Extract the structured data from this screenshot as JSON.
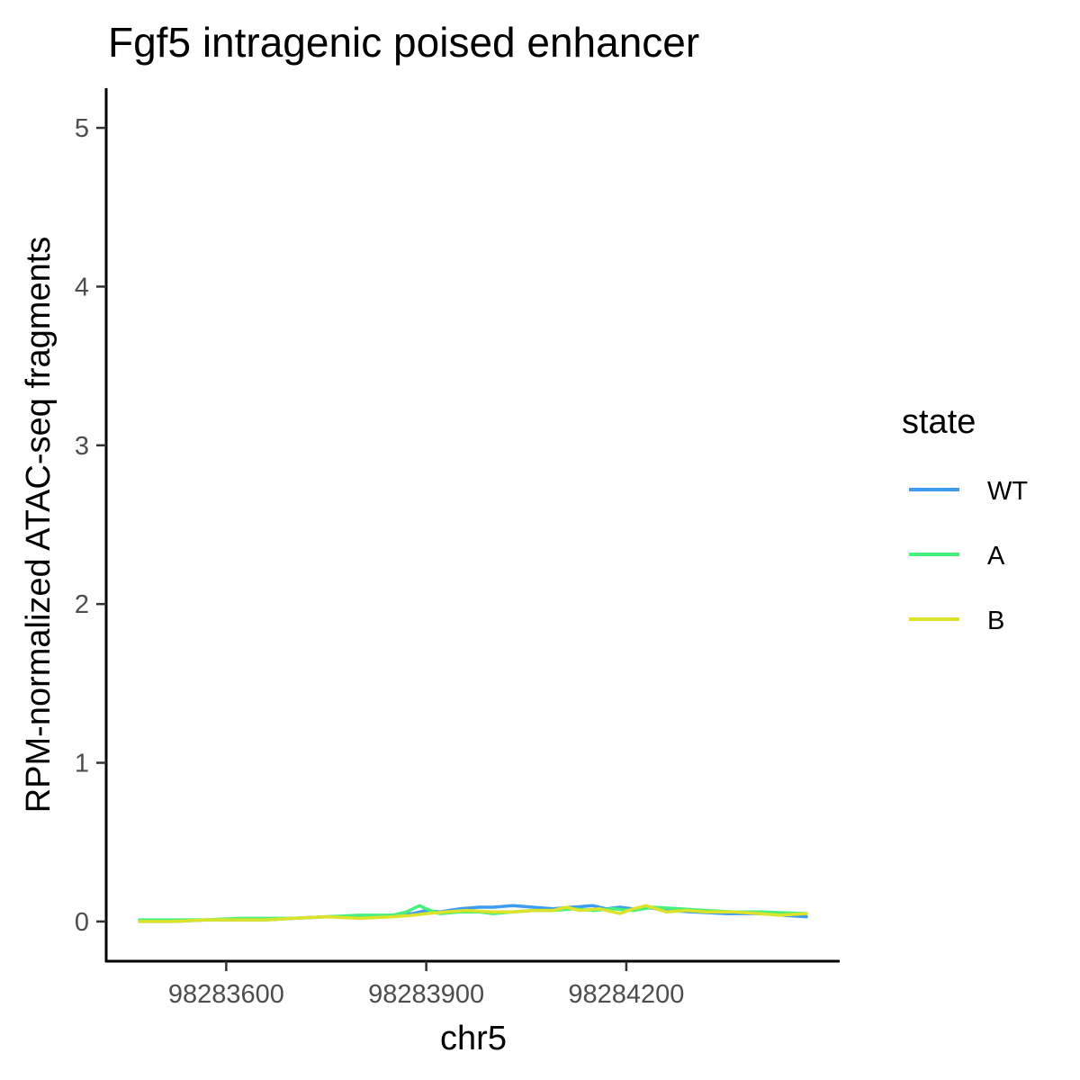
{
  "chart_data": {
    "type": "line",
    "title": "Fgf5 intragenic poised enhancer",
    "xlabel": "chr5",
    "ylabel": "RPM-normalized ATAC-seq fragments",
    "xlim": [
      98283420,
      98284520
    ],
    "ylim": [
      -0.25,
      5.25
    ],
    "x_ticks": [
      98283600,
      98283900,
      98284200
    ],
    "y_ticks": [
      0,
      1,
      2,
      3,
      4,
      5
    ],
    "grid": false,
    "legend": {
      "title": "state",
      "position": "right"
    },
    "series": [
      {
        "name": "WT",
        "color": "#3d9cf0",
        "x": [
          98283470,
          98283520,
          98283570,
          98283620,
          98283660,
          98283700,
          98283750,
          98283800,
          98283850,
          98283880,
          98283900,
          98283920,
          98283950,
          98283980,
          98284000,
          98284030,
          98284060,
          98284090,
          98284120,
          98284150,
          98284170,
          98284190,
          98284210,
          98284230,
          98284260,
          98284300,
          98284350,
          98284400,
          98284470
        ],
        "y": [
          0.0,
          0.0,
          0.01,
          0.01,
          0.01,
          0.02,
          0.03,
          0.03,
          0.04,
          0.05,
          0.07,
          0.06,
          0.08,
          0.09,
          0.09,
          0.1,
          0.09,
          0.08,
          0.09,
          0.1,
          0.08,
          0.09,
          0.08,
          0.09,
          0.07,
          0.06,
          0.05,
          0.05,
          0.03
        ]
      },
      {
        "name": "A",
        "color": "#47f07c",
        "x": [
          98283470,
          98283520,
          98283570,
          98283620,
          98283660,
          98283700,
          98283750,
          98283800,
          98283850,
          98283870,
          98283890,
          98283900,
          98283920,
          98283950,
          98283980,
          98284000,
          98284030,
          98284060,
          98284090,
          98284120,
          98284150,
          98284180,
          98284210,
          98284240,
          98284280,
          98284320,
          98284360,
          98284400,
          98284470
        ],
        "y": [
          0.01,
          0.01,
          0.01,
          0.02,
          0.02,
          0.02,
          0.03,
          0.04,
          0.04,
          0.06,
          0.1,
          0.08,
          0.05,
          0.06,
          0.06,
          0.05,
          0.06,
          0.07,
          0.07,
          0.08,
          0.07,
          0.08,
          0.07,
          0.09,
          0.08,
          0.07,
          0.06,
          0.06,
          0.05
        ]
      },
      {
        "name": "B",
        "color": "#dde32a",
        "x": [
          98283470,
          98283520,
          98283570,
          98283620,
          98283660,
          98283700,
          98283750,
          98283800,
          98283850,
          98283880,
          98283900,
          98283930,
          98283960,
          98284000,
          98284030,
          98284060,
          98284090,
          98284110,
          98284130,
          98284160,
          98284190,
          98284210,
          98284230,
          98284260,
          98284290,
          98284320,
          98284360,
          98284400,
          98284430,
          98284470
        ],
        "y": [
          0.0,
          0.0,
          0.01,
          0.01,
          0.01,
          0.02,
          0.03,
          0.02,
          0.03,
          0.04,
          0.05,
          0.06,
          0.07,
          0.06,
          0.06,
          0.07,
          0.07,
          0.09,
          0.07,
          0.08,
          0.05,
          0.08,
          0.1,
          0.06,
          0.07,
          0.06,
          0.06,
          0.05,
          0.04,
          0.05
        ]
      }
    ]
  }
}
